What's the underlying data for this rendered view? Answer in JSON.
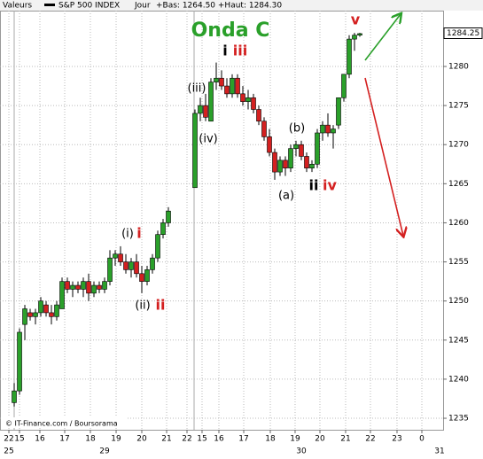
{
  "chart_data": {
    "type": "candlestick",
    "header": {
      "label": "Valeurs",
      "symbol": "S&P 500 INDEX",
      "period": "Jour",
      "range": "+Bas: 1264.50 +Haut: 1284.30"
    },
    "source": "© IT-Finance.com / Boursorama",
    "x": [
      0,
      1,
      2,
      3,
      4,
      5,
      6,
      7,
      8,
      9,
      10,
      11,
      12,
      13,
      14,
      15,
      16,
      17,
      18,
      19,
      20,
      21,
      22,
      23,
      24,
      25,
      26,
      27,
      28,
      29,
      34,
      35,
      36,
      37,
      38,
      39,
      40,
      41,
      42,
      43,
      44,
      45,
      46,
      47,
      48,
      49,
      50,
      51,
      52,
      53,
      54,
      55,
      56,
      57,
      58,
      59,
      60,
      61,
      62,
      63,
      64,
      65
    ],
    "open": [
      1237,
      1238.5,
      1247,
      1248.5,
      1248,
      1248.5,
      1249.5,
      1248.5,
      1248,
      1249,
      1252.5,
      1251.5,
      1252,
      1251.5,
      1252.5,
      1251,
      1252,
      1251.5,
      1252.5,
      1255.5,
      1256,
      1255,
      1254,
      1255,
      1253.5,
      1252.5,
      1254,
      1255.5,
      1258.5,
      1260,
      1264.5,
      1274,
      1275,
      1273,
      1278,
      1278.5,
      1277.5,
      1276.5,
      1278.5,
      1276.5,
      1275.5,
      1276,
      1274.5,
      1273,
      1271,
      1269,
      1266.5,
      1268,
      1267,
      1269.5,
      1270,
      1268.5,
      1267,
      1267.5,
      1271.5,
      1272.5,
      1271.5,
      1272.5,
      1276,
      1279,
      1283.5,
      1284
    ],
    "high": [
      1239.5,
      1246.5,
      1249.5,
      1249,
      1249,
      1250.5,
      1250,
      1249.5,
      1250,
      1253,
      1253,
      1252.5,
      1252.5,
      1253,
      1253.5,
      1252.5,
      1252.5,
      1253,
      1256.5,
      1256.5,
      1257,
      1256,
      1255.5,
      1256,
      1254.5,
      1254.5,
      1256,
      1259,
      1260.5,
      1262,
      1274.5,
      1276,
      1276.5,
      1278.5,
      1280.5,
      1279.5,
      1278.5,
      1279,
      1279,
      1277.5,
      1277,
      1276.5,
      1275,
      1273.5,
      1272,
      1269.5,
      1268.5,
      1268.5,
      1270,
      1270.5,
      1270.5,
      1269,
      1268,
      1272,
      1273,
      1274,
      1272.5,
      1276,
      1279,
      1284,
      1284.3,
      1284.3
    ],
    "low": [
      1236.5,
      1238,
      1245,
      1247.5,
      1247,
      1248,
      1248,
      1247,
      1247.5,
      1249,
      1251,
      1250.5,
      1251,
      1250.5,
      1250,
      1250.5,
      1251,
      1251,
      1252,
      1254.5,
      1254.5,
      1253.5,
      1253,
      1253,
      1251,
      1252,
      1253.5,
      1255,
      1258,
      1259.5,
      1264.5,
      1273,
      1273,
      1273,
      1277,
      1277,
      1276,
      1276,
      1276,
      1275,
      1274.5,
      1274,
      1272.5,
      1270.5,
      1268.5,
      1265.5,
      1266,
      1266,
      1266.5,
      1268.5,
      1268,
      1266.5,
      1266.5,
      1267,
      1270.5,
      1271,
      1269.5,
      1272,
      1275.5,
      1278.5,
      1282,
      1283.8
    ],
    "close": [
      1238.5,
      1246,
      1249,
      1248,
      1248.5,
      1250,
      1248.5,
      1248,
      1249.5,
      1252.5,
      1251.5,
      1252,
      1251.5,
      1252.5,
      1251,
      1252,
      1251.5,
      1252.5,
      1255.5,
      1256,
      1255,
      1254,
      1255,
      1253.5,
      1252.5,
      1254,
      1255.5,
      1258.5,
      1260,
      1261.5,
      1274,
      1275,
      1273.5,
      1278,
      1278.5,
      1277.5,
      1276.5,
      1278.5,
      1276.5,
      1275.5,
      1276,
      1274.5,
      1273,
      1271,
      1269,
      1266.5,
      1268,
      1267,
      1269.5,
      1270,
      1268.5,
      1267,
      1267.5,
      1271.5,
      1272.5,
      1271.5,
      1272,
      1276,
      1279,
      1283.5,
      1284,
      1284.2
    ],
    "up_color": "#2aa02a",
    "down_color": "#d42020",
    "last_price": 1284.25,
    "ylim": [
      1233.53,
      1287.14
    ],
    "yticks": [
      1235,
      1240,
      1245,
      1250,
      1255,
      1260,
      1265,
      1270,
      1275,
      1280
    ],
    "xlim": [
      -2.67,
      80.67
    ],
    "xticks": [
      {
        "value": -1,
        "label": "22"
      },
      {
        "value": 1,
        "label": "15"
      },
      {
        "value": 4.83,
        "label": "16"
      },
      {
        "value": 9.5,
        "label": "17"
      },
      {
        "value": 14.33,
        "label": "18"
      },
      {
        "value": 19.17,
        "label": "19"
      },
      {
        "value": 24,
        "label": "20"
      },
      {
        "value": 28.67,
        "label": "21"
      },
      {
        "value": 32.5,
        "label": "22"
      },
      {
        "value": 35.33,
        "label": "15"
      },
      {
        "value": 38.5,
        "label": "16"
      },
      {
        "value": 43.17,
        "label": "17"
      },
      {
        "value": 48.17,
        "label": "18"
      },
      {
        "value": 52.83,
        "label": "19"
      },
      {
        "value": 57.5,
        "label": "20"
      },
      {
        "value": 62.33,
        "label": "21"
      },
      {
        "value": 67,
        "label": "22"
      },
      {
        "value": 72,
        "label": "23"
      },
      {
        "value": 76.67,
        "label": "0"
      }
    ],
    "date_ticks": [
      {
        "value": -1,
        "label": "25"
      },
      {
        "value": 17,
        "label": "29"
      },
      {
        "value": 54,
        "label": "30"
      },
      {
        "value": 80,
        "label": "31"
      }
    ],
    "grid": true,
    "annotations": [
      {
        "text": "Onda C",
        "color": "#2aa02a"
      },
      {
        "text": "i",
        "color": "#000000"
      },
      {
        "text": "iii",
        "color": "#d42020"
      },
      {
        "text": "(iii)",
        "color": "#000000"
      },
      {
        "text": "(iv)",
        "color": "#000000"
      },
      {
        "text": "(b)",
        "color": "#000000"
      },
      {
        "text": "(a)",
        "color": "#000000"
      },
      {
        "text": "ii",
        "color": "#000000"
      },
      {
        "text": "iv",
        "color": "#d42020"
      },
      {
        "text": "v",
        "color": "#d42020"
      },
      {
        "text": "(i)",
        "color": "#000000"
      },
      {
        "text": "i",
        "color": "#d42020"
      },
      {
        "text": "(ii)",
        "color": "#000000"
      },
      {
        "text": "ii",
        "color": "#d42020"
      }
    ]
  }
}
